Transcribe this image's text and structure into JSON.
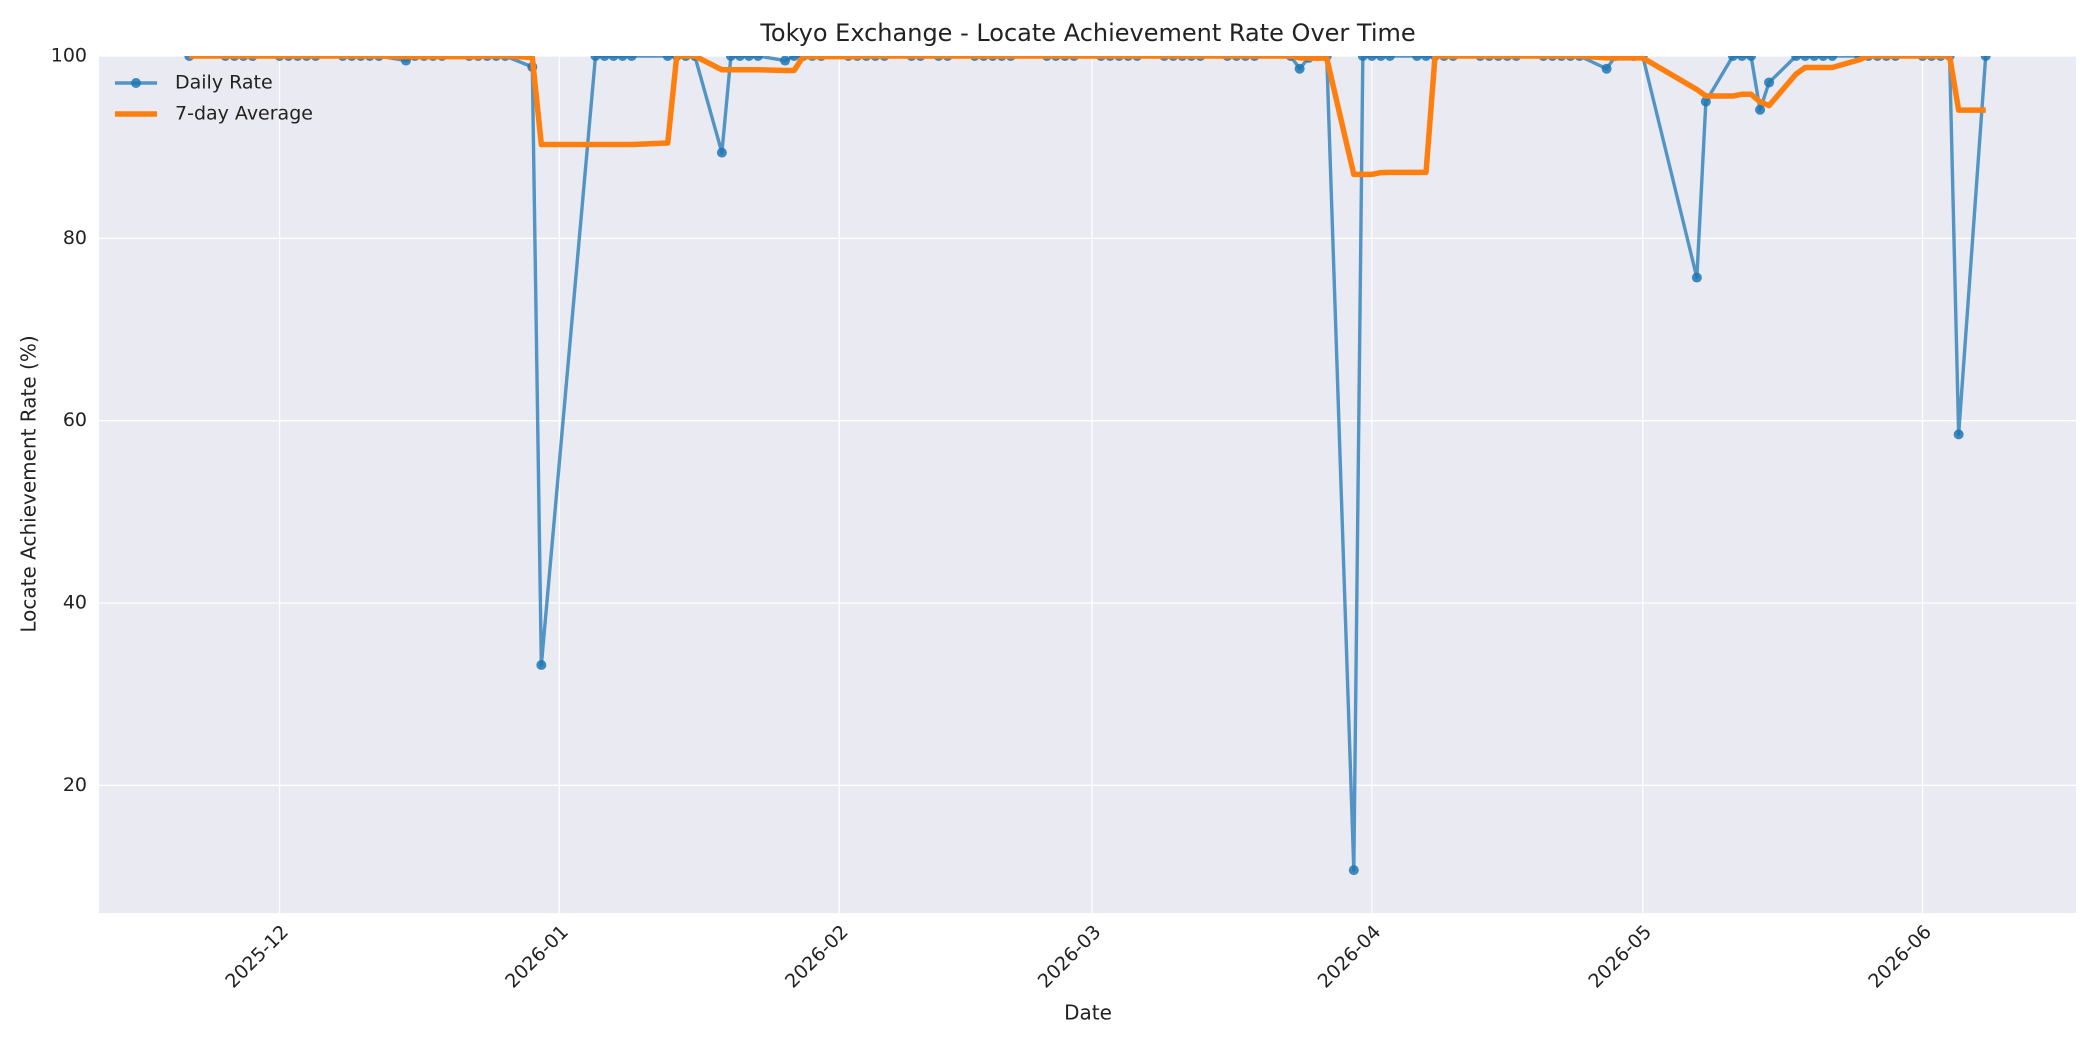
{
  "chart_data": {
    "type": "line",
    "title": "Tokyo Exchange - Locate Achievement Rate Over Time",
    "xlabel": "Date",
    "ylabel": "Locate Achievement Rate (%)",
    "x": [
      "2025-11-21",
      "2025-11-25",
      "2025-11-26",
      "2025-11-27",
      "2025-11-28",
      "2025-12-01",
      "2025-12-02",
      "2025-12-03",
      "2025-12-04",
      "2025-12-05",
      "2025-12-08",
      "2025-12-09",
      "2025-12-10",
      "2025-12-11",
      "2025-12-12",
      "2025-12-15",
      "2025-12-16",
      "2025-12-17",
      "2025-12-18",
      "2025-12-19",
      "2025-12-22",
      "2025-12-23",
      "2025-12-24",
      "2025-12-25",
      "2025-12-26",
      "2025-12-29",
      "2025-12-30",
      "2026-01-05",
      "2026-01-06",
      "2026-01-07",
      "2026-01-08",
      "2026-01-09",
      "2026-01-13",
      "2026-01-14",
      "2026-01-15",
      "2026-01-16",
      "2026-01-19",
      "2026-01-20",
      "2026-01-21",
      "2026-01-22",
      "2026-01-23",
      "2026-01-26",
      "2026-01-27",
      "2026-01-28",
      "2026-01-29",
      "2026-01-30",
      "2026-02-02",
      "2026-02-03",
      "2026-02-04",
      "2026-02-05",
      "2026-02-06",
      "2026-02-09",
      "2026-02-10",
      "2026-02-12",
      "2026-02-13",
      "2026-02-16",
      "2026-02-17",
      "2026-02-18",
      "2026-02-19",
      "2026-02-20",
      "2026-02-24",
      "2026-02-25",
      "2026-02-26",
      "2026-02-27",
      "2026-03-02",
      "2026-03-03",
      "2026-03-04",
      "2026-03-05",
      "2026-03-06",
      "2026-03-09",
      "2026-03-10",
      "2026-03-11",
      "2026-03-12",
      "2026-03-13",
      "2026-03-16",
      "2026-03-17",
      "2026-03-18",
      "2026-03-19",
      "2026-03-23",
      "2026-03-24",
      "2026-03-25",
      "2026-03-26",
      "2026-03-27",
      "2026-03-30",
      "2026-03-31",
      "2026-04-01",
      "2026-04-02",
      "2026-04-03",
      "2026-04-06",
      "2026-04-07",
      "2026-04-08",
      "2026-04-09",
      "2026-04-10",
      "2026-04-13",
      "2026-04-14",
      "2026-04-15",
      "2026-04-16",
      "2026-04-17",
      "2026-04-20",
      "2026-04-21",
      "2026-04-22",
      "2026-04-23",
      "2026-04-24",
      "2026-04-27",
      "2026-04-28",
      "2026-04-30",
      "2026-05-01",
      "2026-05-07",
      "2026-05-08",
      "2026-05-11",
      "2026-05-12",
      "2026-05-13",
      "2026-05-14",
      "2026-05-15",
      "2026-05-18",
      "2026-05-19",
      "2026-05-20",
      "2026-05-21",
      "2026-05-22",
      "2026-05-25",
      "2026-05-26",
      "2026-05-27",
      "2026-05-28",
      "2026-05-29",
      "2026-06-01",
      "2026-06-02",
      "2026-06-03",
      "2026-06-04",
      "2026-06-05",
      "2026-06-08"
    ],
    "series": [
      {
        "name": "Daily Rate",
        "color": "#1f77b4",
        "marker": "o",
        "values": [
          100,
          100,
          100,
          100,
          100,
          100,
          100,
          100,
          100,
          100,
          100,
          100,
          100,
          100,
          100,
          99.5,
          100,
          100,
          100,
          100,
          100,
          100,
          100,
          100,
          100,
          98.8,
          33.2,
          100,
          100,
          100,
          100,
          100,
          100,
          100,
          100,
          100,
          89.4,
          100,
          100,
          100,
          100,
          99.5,
          100,
          100,
          100,
          100,
          100,
          100,
          100,
          100,
          100,
          100,
          100,
          100,
          100,
          100,
          100,
          100,
          100,
          100,
          100,
          100,
          100,
          100,
          100,
          100,
          100,
          100,
          100,
          100,
          100,
          100,
          100,
          100,
          100,
          100,
          100,
          100,
          100,
          98.6,
          99.8,
          100,
          100,
          10.7,
          100,
          100,
          100,
          100,
          100,
          100,
          100,
          100,
          100,
          100,
          100,
          100,
          100,
          100,
          100,
          100,
          100,
          100,
          100,
          98.6,
          100,
          100,
          100,
          75.7,
          95,
          100,
          100,
          100,
          94.1,
          97.1,
          100,
          100,
          100,
          100,
          100,
          100,
          100,
          100,
          100,
          100,
          100,
          100,
          100,
          100,
          58.5,
          100
        ]
      },
      {
        "name": "7-day Average",
        "color": "#ff7f0e",
        "values": [
          100,
          100,
          100,
          100,
          100,
          100,
          100,
          100,
          100,
          100,
          100,
          100,
          100,
          100,
          100,
          99.93,
          99.93,
          99.93,
          99.93,
          99.93,
          99.93,
          99.93,
          100,
          100,
          100,
          99.83,
          90.29,
          90.29,
          90.29,
          90.29,
          90.29,
          90.29,
          90.46,
          100,
          100,
          100,
          98.49,
          98.49,
          98.49,
          98.49,
          98.49,
          98.41,
          98.41,
          99.93,
          99.93,
          99.93,
          99.93,
          99.93,
          100,
          100,
          100,
          100,
          100,
          100,
          100,
          100,
          100,
          100,
          100,
          100,
          100,
          100,
          100,
          100,
          100,
          100,
          100,
          100,
          100,
          100,
          100,
          100,
          100,
          100,
          100,
          100,
          100,
          100,
          100,
          99.8,
          99.77,
          99.77,
          99.77,
          87.01,
          87.01,
          87.01,
          87.21,
          87.24,
          87.24,
          87.24,
          100,
          100,
          100,
          100,
          100,
          100,
          100,
          100,
          100,
          100,
          100,
          100,
          100,
          99.8,
          99.8,
          99.8,
          99.8,
          96.33,
          95.61,
          95.61,
          95.81,
          95.81,
          94.97,
          94.56,
          98.03,
          98.74,
          98.74,
          98.74,
          98.74,
          99.59,
          100,
          100,
          100,
          100,
          100,
          100,
          100,
          100,
          94.07,
          94.07
        ]
      }
    ],
    "xlim": [
      "2025-11-11",
      "2026-06-18"
    ],
    "xticks": [
      {
        "value": "2025-12-01",
        "label": "2025-12"
      },
      {
        "value": "2026-01-01",
        "label": "2026-01"
      },
      {
        "value": "2026-02-01",
        "label": "2026-02"
      },
      {
        "value": "2026-03-01",
        "label": "2026-03"
      },
      {
        "value": "2026-04-01",
        "label": "2026-04"
      },
      {
        "value": "2026-05-01",
        "label": "2026-05"
      },
      {
        "value": "2026-06-01",
        "label": "2026-06"
      }
    ],
    "ylim": [
      6,
      100
    ],
    "yticks": [
      20,
      40,
      60,
      80,
      100
    ],
    "grid": true,
    "legend": "upper left"
  }
}
